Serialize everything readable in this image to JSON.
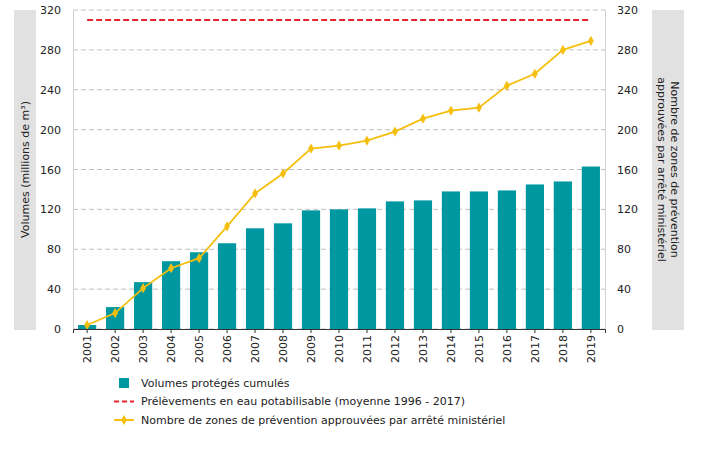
{
  "chart_data": {
    "type": "bar",
    "y_label": "Volumes (millions de m³)",
    "y2_label": "Nombre de zones de prévention approuvées par arrêté ministériel",
    "categories": [
      "2001",
      "2002",
      "2003",
      "2004",
      "2005",
      "2006",
      "2007",
      "2008",
      "2009",
      "2010",
      "2011",
      "2012",
      "2013",
      "2014",
      "2015",
      "2016",
      "2017",
      "2018",
      "2019"
    ],
    "series": [
      {
        "name": "Volumes protégés cumulés",
        "type": "bar",
        "color": "#0098a0",
        "values": [
          4,
          22,
          47,
          68,
          77,
          86,
          101,
          106,
          119,
          120,
          121,
          128,
          129,
          138,
          138,
          139,
          145,
          148,
          163
        ]
      },
      {
        "name": "Prélèvements en eau potabilisable (moyenne 1996 - 2017)",
        "type": "line",
        "color": "#e3262d",
        "line_style": "dashed",
        "values": [
          310,
          310,
          310,
          310,
          310,
          310,
          310,
          310,
          310,
          310,
          310,
          310,
          310,
          310,
          310,
          310,
          310,
          310,
          310
        ]
      },
      {
        "name": "Nombre de zones de prévention approuvées par arrêté ministériel",
        "type": "line",
        "color": "#f5bf0f",
        "marker": "diamond",
        "axis": "y2",
        "values": [
          4,
          16,
          41,
          61,
          71,
          103,
          136,
          156,
          181,
          184,
          189,
          198,
          211,
          219,
          222,
          244,
          256,
          280,
          289
        ]
      }
    ],
    "ylim": [
      0,
      320
    ],
    "yticks": [
      0,
      40,
      80,
      120,
      160,
      200,
      240,
      280,
      320
    ],
    "y2lim": [
      0,
      320
    ],
    "y2ticks": [
      0,
      40,
      80,
      120,
      160,
      200,
      240,
      280,
      320
    ],
    "grid": true,
    "legend": "bottom"
  }
}
